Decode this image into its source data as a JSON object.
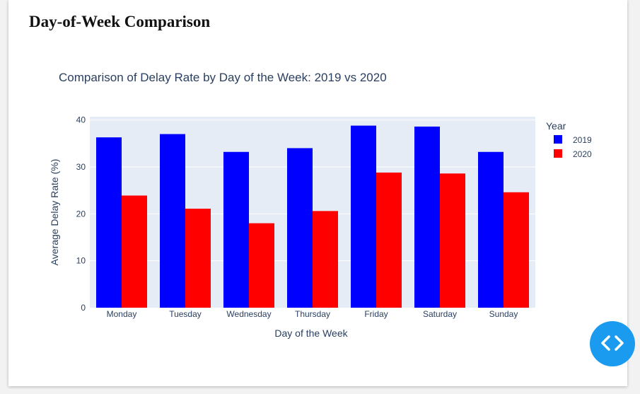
{
  "section": {
    "heading": "Day-of-Week Comparison"
  },
  "chart_data": {
    "type": "bar",
    "title": "Comparison of Delay Rate by Day of the Week: 2019 vs 2020",
    "xlabel": "Day of the Week",
    "ylabel": "Average Delay Rate (%)",
    "categories": [
      "Monday",
      "Tuesday",
      "Wednesday",
      "Thursday",
      "Friday",
      "Saturday",
      "Sunday"
    ],
    "series": [
      {
        "name": "2019",
        "color": "#0000ff",
        "values": [
          36.3,
          37.0,
          33.2,
          34.0,
          38.8,
          38.6,
          33.2
        ]
      },
      {
        "name": "2020",
        "color": "#ff0000",
        "values": [
          23.9,
          21.1,
          18.0,
          20.6,
          28.8,
          28.6,
          24.6
        ]
      }
    ],
    "ylim": [
      0,
      40.7
    ],
    "yticks": [
      "0",
      "10",
      "20",
      "30",
      "40"
    ],
    "grid": true,
    "legend": {
      "title": "Year",
      "position": "right"
    },
    "plot_background": "#e5ecf6"
  },
  "ui": {
    "code_button_icon": "code-brackets-icon"
  }
}
